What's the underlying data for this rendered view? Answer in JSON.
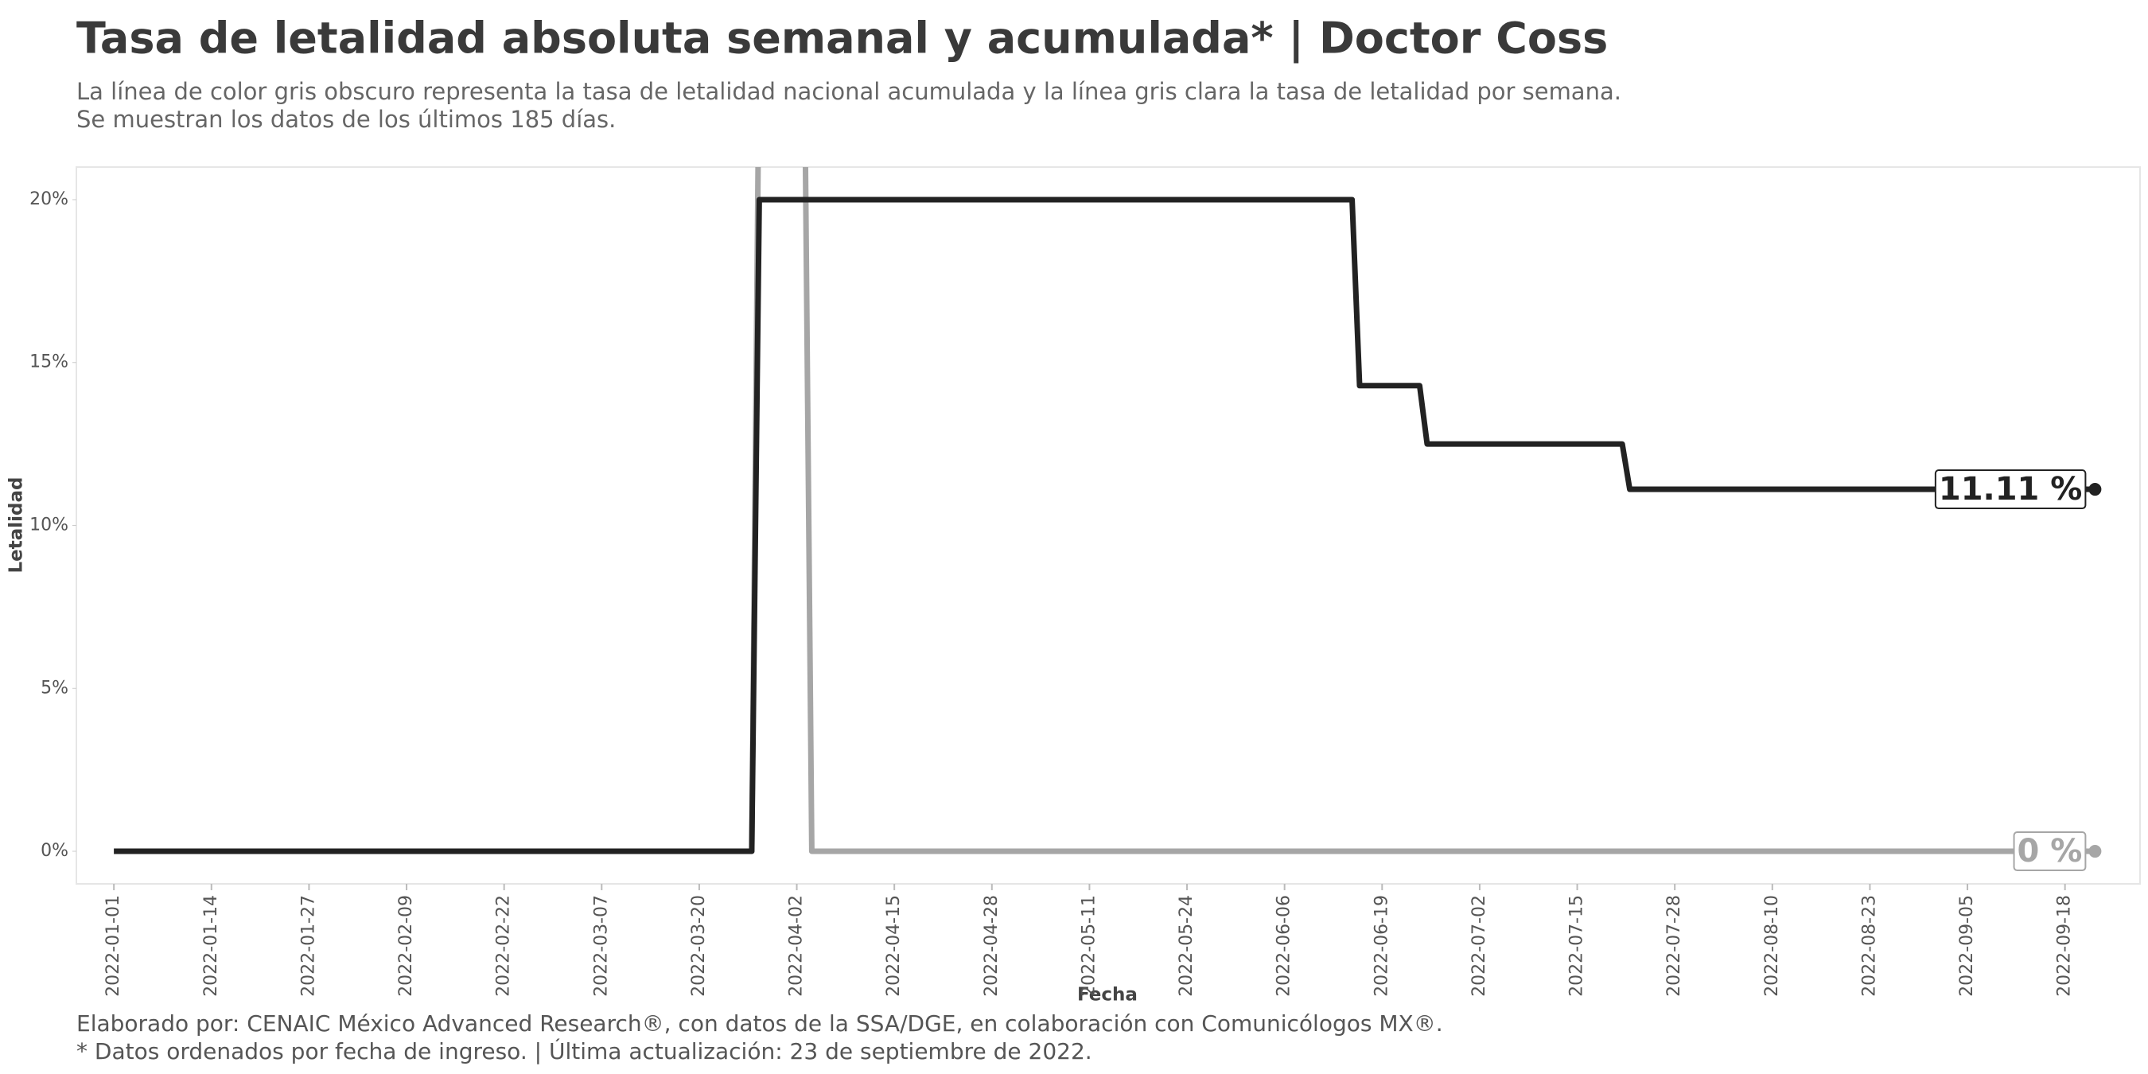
{
  "chart_data": {
    "type": "line",
    "title": "Tasa de letalidad absoluta semanal y acumulada* | Doctor Coss",
    "subtitle": [
      "La línea de color gris obscuro representa la tasa de letalidad nacional acumulada y la línea gris clara la tasa de letalidad por semana.",
      "Se muestran los datos de los últimos 185 días."
    ],
    "caption": [
      "Elaborado por: CENAIC México Advanced Research®, con datos de la SSA/DGE, en colaboración con Comunicólogos MX®.",
      "* Datos ordenados por fecha de ingreso. | Última actualización: 23 de septiembre de 2022."
    ],
    "xlabel": "Fecha",
    "ylabel": "Letalidad",
    "x": [
      "2022-01-01",
      "2022-03-27",
      "2022-03-28",
      "2022-04-03",
      "2022-04-04",
      "2022-06-15",
      "2022-06-16",
      "2022-06-24",
      "2022-06-25",
      "2022-07-21",
      "2022-07-22",
      "2022-09-22"
    ],
    "series": [
      {
        "name": "Acumulada",
        "color": "#222222",
        "values": [
          0,
          0,
          20,
          20,
          20,
          20,
          14.29,
          14.29,
          12.5,
          12.5,
          11.11,
          11.11
        ],
        "value_labels": [
          null,
          null,
          null,
          null,
          null,
          null,
          null,
          null,
          null,
          null,
          null,
          "11.11 %"
        ]
      },
      {
        "name": "Semanal",
        "color": "#a6a6a6",
        "values": [
          0,
          0,
          25,
          25,
          0,
          0,
          0,
          0,
          0,
          0,
          0,
          0
        ],
        "value_labels": [
          null,
          null,
          null,
          null,
          null,
          null,
          null,
          null,
          null,
          null,
          null,
          "0 %"
        ]
      }
    ],
    "xlim": [
      "2021-12-27",
      "2022-09-28"
    ],
    "xticks": [
      "2022-01-01",
      "2022-01-14",
      "2022-01-27",
      "2022-02-09",
      "2022-02-22",
      "2022-03-07",
      "2022-03-20",
      "2022-04-02",
      "2022-04-15",
      "2022-04-28",
      "2022-05-11",
      "2022-05-24",
      "2022-06-06",
      "2022-06-19",
      "2022-07-02",
      "2022-07-15",
      "2022-07-28",
      "2022-08-10",
      "2022-08-23",
      "2022-09-05",
      "2022-09-18"
    ],
    "ylim": [
      -1,
      21
    ],
    "yticks": [
      {
        "value": 0,
        "label": "0%"
      },
      {
        "value": 5,
        "label": "5%"
      },
      {
        "value": 10,
        "label": "10%"
      },
      {
        "value": 15,
        "label": "15%"
      },
      {
        "value": 20,
        "label": "20%"
      }
    ]
  }
}
